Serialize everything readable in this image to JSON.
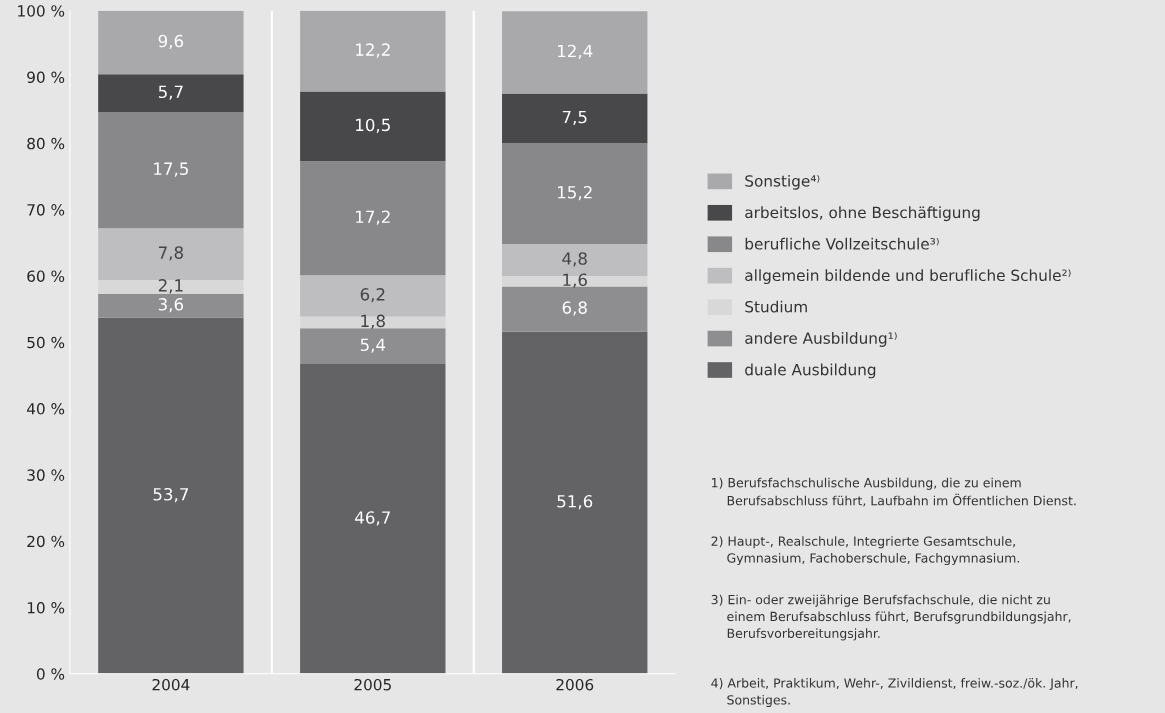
{
  "chart_data": {
    "type": "bar",
    "stacked": true,
    "categories": [
      "2004",
      "2005",
      "2006"
    ],
    "series": [
      {
        "name": "duale Ausbildung",
        "color": "#636365",
        "values": [
          53.7,
          46.7,
          51.6
        ],
        "value_labels": [
          "53,7",
          "46,7",
          "51,6"
        ]
      },
      {
        "name": "andere Ausbildung¹⁾",
        "color": "#8e8e90",
        "values": [
          3.6,
          5.4,
          6.8
        ],
        "value_labels": [
          "3,6",
          "5,4",
          "6,8"
        ]
      },
      {
        "name": "Studium",
        "color": "#d8d8d9",
        "values": [
          2.1,
          1.8,
          1.6
        ],
        "value_labels": [
          "2,1",
          "1,8",
          "1,6"
        ]
      },
      {
        "name": "allgemein bildende und berufliche Schule²⁾",
        "color": "#bebec0",
        "values": [
          7.8,
          6.2,
          4.8
        ],
        "value_labels": [
          "7,8",
          "6,2",
          "4,8"
        ]
      },
      {
        "name": "berufliche Vollzeitschule³⁾",
        "color": "#88888a",
        "values": [
          17.5,
          17.2,
          15.2
        ],
        "value_labels": [
          "17,5",
          "17,2",
          "15,2"
        ]
      },
      {
        "name": "arbeitslos, ohne Beschäftigung",
        "color": "#48484a",
        "values": [
          5.7,
          10.5,
          7.5
        ],
        "value_labels": [
          "5,7",
          "10,5",
          "7,5"
        ]
      },
      {
        "name": "Sonstige⁴⁾",
        "color": "#a9a9ab",
        "values": [
          9.6,
          12.2,
          12.4
        ],
        "value_labels": [
          "9,6",
          "12,2",
          "12,4"
        ]
      }
    ],
    "ylim": [
      0,
      100
    ],
    "yticks": [
      {
        "value": 0,
        "label": "0 %"
      },
      {
        "value": 10,
        "label": "10 %"
      },
      {
        "value": 20,
        "label": "20 %"
      },
      {
        "value": 30,
        "label": "30 %"
      },
      {
        "value": 40,
        "label": "40 %"
      },
      {
        "value": 50,
        "label": "50 %"
      },
      {
        "value": 60,
        "label": "60 %"
      },
      {
        "value": 70,
        "label": "70 %"
      },
      {
        "value": 80,
        "label": "80 %"
      },
      {
        "value": 90,
        "label": "90 %"
      },
      {
        "value": 100,
        "label": "100 %"
      }
    ],
    "grid": "x",
    "legend": "right",
    "annotations": [
      "1) Berufsfachschulische Ausbildung, die zu einem\n    Berufsabschluss führt, Laufbahn im Öffentlichen Dienst.",
      "2) Haupt-, Realschule, Integrierte Gesamtschule,\n    Gymnasium, Fachoberschule, Fachgymnasium.",
      "3) Ein- oder zweijährige Berufsfachschule, die nicht zu\n    einem Berufsabschluss führt, Berufsgrundbildungsjahr,\n    Berufsvorbereitungsjahr.",
      "4) Arbeit, Praktikum, Wehr-, Zivildienst, freiw.-soz./ök. Jahr,\n    Sonstiges."
    ]
  }
}
